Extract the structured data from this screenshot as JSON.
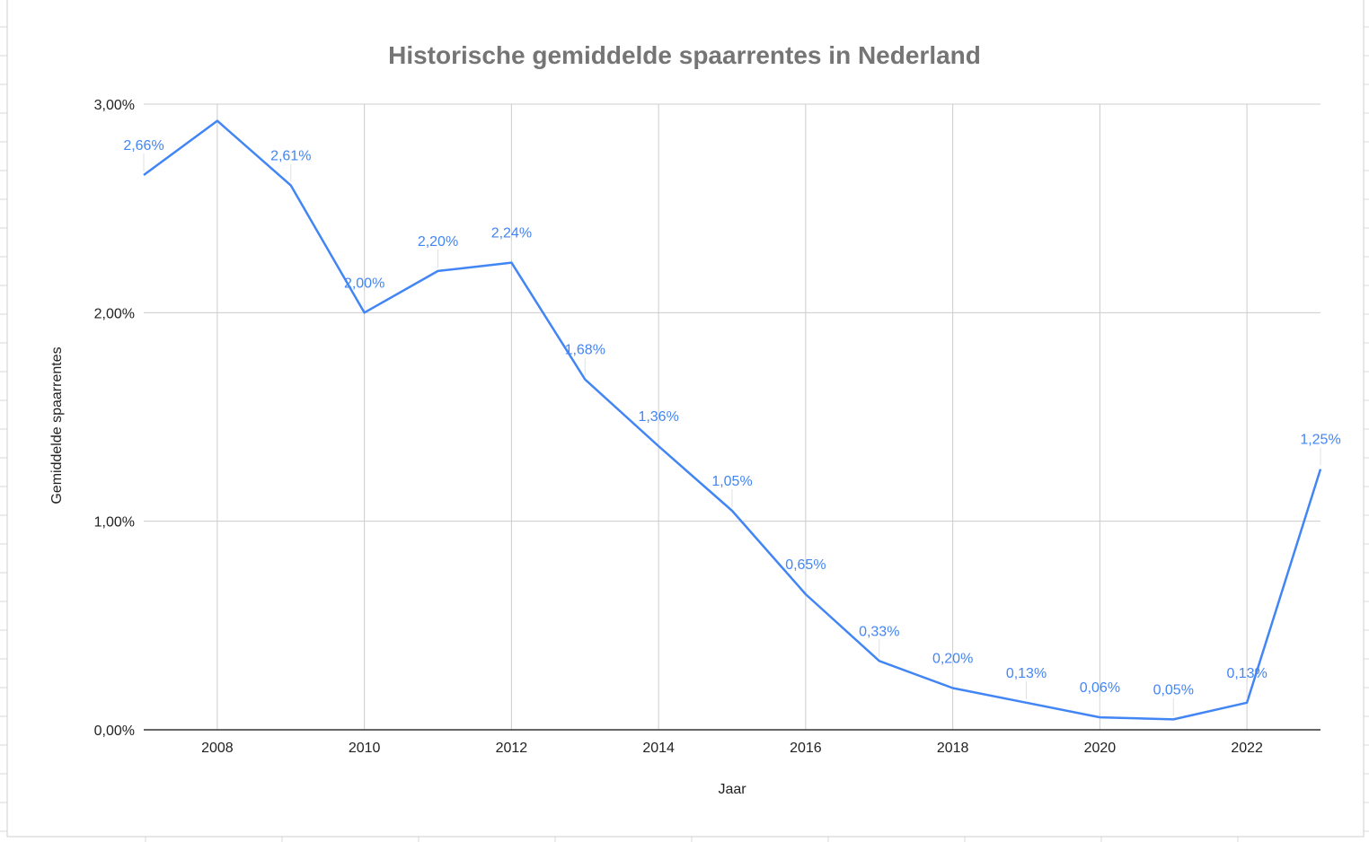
{
  "chart_data": {
    "type": "line",
    "title": "Historische gemiddelde spaarrentes in Nederland",
    "xlabel": "Jaar",
    "ylabel": "Gemiddelde spaarrentes",
    "xlim": [
      2007,
      2023
    ],
    "ylim": [
      0,
      3
    ],
    "x_ticks": [
      "2008",
      "2010",
      "2012",
      "2014",
      "2016",
      "2018",
      "2020",
      "2022"
    ],
    "y_ticks": [
      "0,00%",
      "1,00%",
      "2,00%",
      "3,00%"
    ],
    "grid": true,
    "legend": "none",
    "line_color": "#4285f4",
    "series": [
      {
        "x": [
          2007,
          2008,
          2009,
          2010,
          2011,
          2012,
          2013,
          2014,
          2015,
          2016,
          2017,
          2018,
          2019,
          2020,
          2021,
          2022,
          2023
        ],
        "values": [
          2.66,
          2.92,
          2.61,
          2.0,
          2.2,
          2.24,
          1.68,
          1.36,
          1.05,
          0.65,
          0.33,
          0.2,
          0.13,
          0.06,
          0.05,
          0.13,
          1.25
        ],
        "data_labels": [
          "2,66%",
          "",
          "2,61%",
          "2,00%",
          "2,20%",
          "2,24%",
          "1,68%",
          "1,36%",
          "1,05%",
          "0,65%",
          "0,33%",
          "0,20%",
          "0,13%",
          "0,06%",
          "0,05%",
          "0,13%",
          "1,25%"
        ]
      }
    ]
  }
}
